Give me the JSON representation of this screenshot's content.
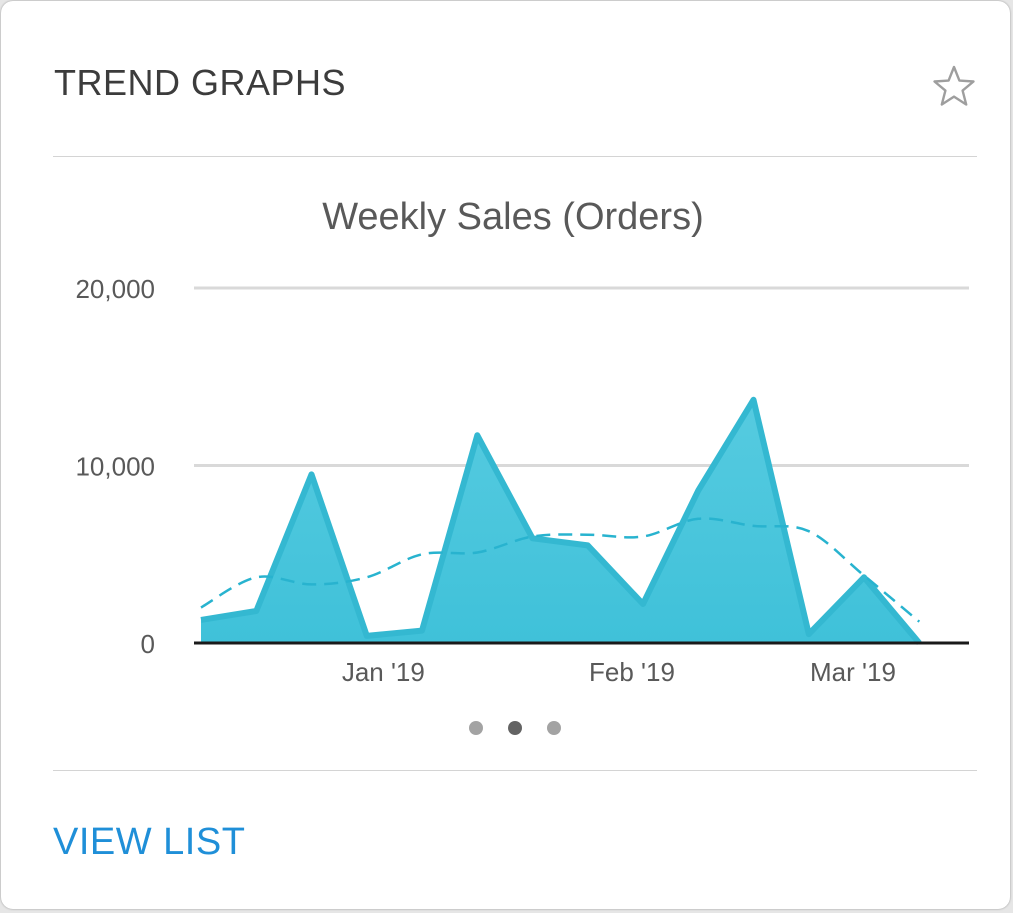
{
  "card": {
    "title": "TREND GRAPHS",
    "star_icon": "star-outline-icon",
    "view_list_label": "VIEW LIST"
  },
  "carousel": {
    "page_count": 3,
    "active_index": 1
  },
  "colors": {
    "area_fill": "#3fc1d9",
    "area_stroke": "#34b8d1",
    "trend_line": "#28b3cf",
    "link": "#1f8fd8"
  },
  "chart_data": {
    "type": "area",
    "title": "Weekly Sales (Orders)",
    "xlabel": "",
    "ylabel": "",
    "ylim": [
      0,
      20000
    ],
    "y_ticks": [
      {
        "value": 0,
        "label": "0"
      },
      {
        "value": 10000,
        "label": "10,000"
      },
      {
        "value": 20000,
        "label": "20,000"
      }
    ],
    "x_ticks": [
      {
        "value": 3.3,
        "label": "Jan '19"
      },
      {
        "value": 7.8,
        "label": "Feb '19"
      },
      {
        "value": 11.8,
        "label": "Mar '19"
      }
    ],
    "grid": true,
    "series": [
      {
        "style": "area",
        "x": [
          0,
          1,
          2,
          3,
          4,
          5,
          6,
          7,
          8,
          9,
          10,
          11,
          12,
          13
        ],
        "values": [
          1300,
          1800,
          9500,
          400,
          700,
          11700,
          5900,
          5500,
          2200,
          8600,
          13700,
          500,
          3700,
          0
        ]
      },
      {
        "style": "dashed-trend",
        "x": [
          0,
          1,
          2,
          3,
          4,
          5,
          6,
          7,
          8,
          9,
          10,
          11,
          12,
          13
        ],
        "values": [
          2000,
          3700,
          3300,
          3700,
          5000,
          5100,
          6000,
          6100,
          6000,
          7000,
          6600,
          6300,
          3800,
          1200
        ]
      }
    ]
  }
}
